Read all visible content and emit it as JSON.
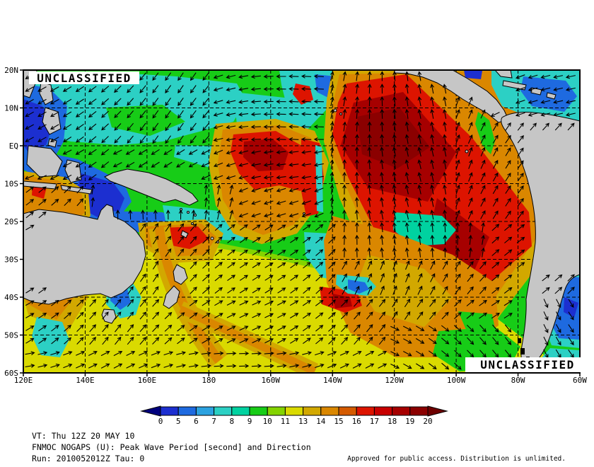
{
  "classification": {
    "text": "UNCLASSIFIED",
    "color": "#2ECC2E"
  },
  "map": {
    "lat_ticks": [
      "20N",
      "10N",
      "EQ",
      "10S",
      "20S",
      "30S",
      "40S",
      "50S",
      "60S"
    ],
    "lon_ticks": [
      "120E",
      "140E",
      "160E",
      "180",
      "160W",
      "140W",
      "120W",
      "100W",
      "80W",
      "60W"
    ],
    "land_color": "#C6C6C6",
    "coast_color": "#000000",
    "grid_color": "#000000",
    "arrow_color": "#000000"
  },
  "colorbar": {
    "tick_labels": [
      "0",
      "5",
      "6",
      "7",
      "8",
      "9",
      "10",
      "11",
      "13",
      "14",
      "15",
      "16",
      "17",
      "18",
      "19",
      "20"
    ],
    "segment_colors": [
      "#1C2FD0",
      "#1E6AE0",
      "#2CA2E0",
      "#2CD0C4",
      "#00D2A0",
      "#17CC17",
      "#84D300",
      "#DADA00",
      "#D2A800",
      "#DA8700",
      "#D45A00",
      "#DD1400",
      "#C80000",
      "#A60000",
      "#8B0000"
    ],
    "left_tip_color": "#00007E",
    "right_tip_color": "#6E0000"
  },
  "footer": {
    "valid_time": "VT: Thu 12Z 20 MAY 10",
    "product_title": "FNMOC NOGAPS (U): Peak Wave Period [second] and Direction",
    "run_info": "Run: 2010052012Z Tau: 0",
    "release_statement": "Approved for public access. Distribution is unlimited."
  },
  "chart_data": {
    "type": "heatmap",
    "title": "FNMOC NOGAPS (U): Peak Wave Period [second] and Direction",
    "variable": "Peak Wave Period",
    "units": "second",
    "overlay": "peak wave direction arrows",
    "model": "NOGAPS",
    "center": "FNMOC",
    "run": "2010052012Z",
    "tau": "0",
    "valid_time": "Thu 12Z 20 MAY 10",
    "region": {
      "lat_range": [
        "20N",
        "60S"
      ],
      "lon_range": [
        "120E",
        "60W"
      ]
    },
    "scale_bounds_seconds": [
      0,
      5,
      6,
      7,
      8,
      9,
      10,
      11,
      13,
      14,
      15,
      16,
      17,
      18,
      19,
      20
    ],
    "notable_features": [
      "Large 16-20 s swell (red/dark red) across the eastern tropical Pacific from Central America toward 140W, arrows directed N-NE",
      "Secondary 16-18 s red cell near the dateline around 5N-10S",
      "7-9 s cyan/green field over the western North Pacific with westward arrows",
      "5-7 s blue minima around the Philippines, Indonesia and the Caribbean",
      "Broad 11-15 s yellow/orange Southern Ocean band south of 30S with NE-directed arrows",
      "Low-period blue patch east of Patagonia in the Atlantic"
    ]
  }
}
